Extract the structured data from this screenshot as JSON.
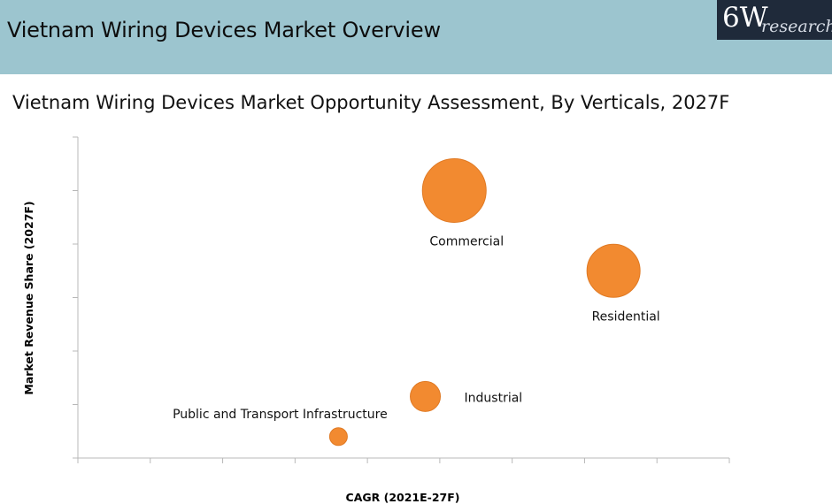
{
  "header": {
    "title": "Vietnam Wiring Devices Market Overview",
    "logo_main": "6W",
    "logo_sub": "research"
  },
  "chart_data": {
    "type": "scatter",
    "title": "Vietnam Wiring Devices Market Opportunity Assessment, By Verticals, 2027F",
    "xlabel": "CAGR (2021E-27F)",
    "ylabel": "Market Revenue Share (2027F)",
    "xlim": [
      0,
      9
    ],
    "ylim": [
      0,
      6
    ],
    "grid": false,
    "series": [
      {
        "name": "Commercial",
        "x": 5.2,
        "y": 5.0,
        "size": 36,
        "label_pos": "below"
      },
      {
        "name": "Residential",
        "x": 7.4,
        "y": 3.5,
        "size": 30,
        "label_pos": "below"
      },
      {
        "name": "Industrial",
        "x": 4.8,
        "y": 1.15,
        "size": 17,
        "label_pos": "right"
      },
      {
        "name": "Public and Transport Infrastructure",
        "x": 3.6,
        "y": 0.4,
        "size": 10,
        "label_pos": "above-left"
      }
    ],
    "colors": {
      "bubble": "#f28a30",
      "bubble_edge": "#e07a24",
      "axis": "#b8b8b8"
    }
  }
}
